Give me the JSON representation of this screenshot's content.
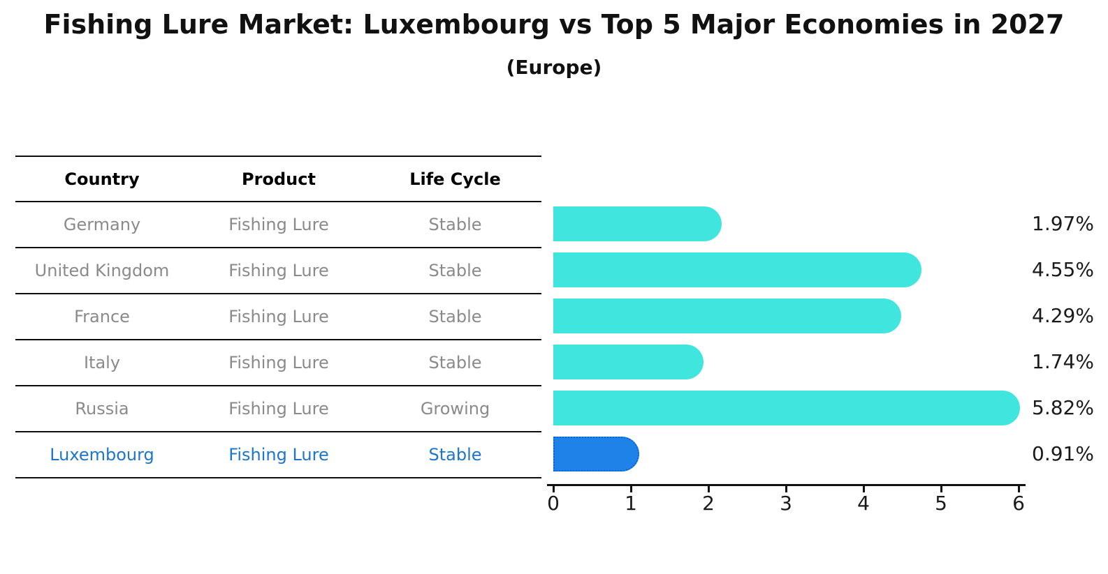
{
  "header": {
    "title": "Fishing Lure Market: Luxembourg vs Top 5 Major Economies in 2027",
    "subtitle": "(Europe)"
  },
  "table": {
    "columns": [
      "Country",
      "Product",
      "Life Cycle"
    ],
    "rows": [
      {
        "country": "Germany",
        "product": "Fishing Lure",
        "life_cycle": "Stable",
        "highlight": false
      },
      {
        "country": "United Kingdom",
        "product": "Fishing Lure",
        "life_cycle": "Stable",
        "highlight": false
      },
      {
        "country": "France",
        "product": "Fishing Lure",
        "life_cycle": "Stable",
        "highlight": false
      },
      {
        "country": "Italy",
        "product": "Fishing Lure",
        "life_cycle": "Stable",
        "highlight": false
      },
      {
        "country": "Russia",
        "product": "Fishing Lure",
        "life_cycle": "Growing",
        "highlight": false
      },
      {
        "country": "Luxembourg",
        "product": "Fishing Lure",
        "life_cycle": "Stable",
        "highlight": true
      }
    ]
  },
  "chart_data": {
    "type": "bar",
    "orientation": "horizontal",
    "title": "Fishing Lure Market: Luxembourg vs Top 5 Major Economies in 2027",
    "subtitle": "(Europe)",
    "categories": [
      "Germany",
      "United Kingdom",
      "France",
      "Italy",
      "Russia",
      "Luxembourg"
    ],
    "values": [
      1.97,
      4.55,
      4.29,
      1.74,
      5.82,
      0.91
    ],
    "value_labels": [
      "1.97%",
      "4.55%",
      "4.29%",
      "1.74%",
      "5.82%",
      "0.91%"
    ],
    "unit": "percent",
    "xlim": [
      0,
      6
    ],
    "xticks": [
      "0",
      "1",
      "2",
      "3",
      "4",
      "5",
      "6"
    ],
    "grid": false,
    "legend": false,
    "highlight_index": 5,
    "colors": {
      "bar": "#40e6de",
      "highlight_bar": "#1e82e8",
      "highlight_border": "#0e62d9",
      "highlight_text": "#1b76cc",
      "row_text": "#8a8a8a",
      "header_text": "#000000",
      "value_text": "#1a1a1a"
    }
  }
}
